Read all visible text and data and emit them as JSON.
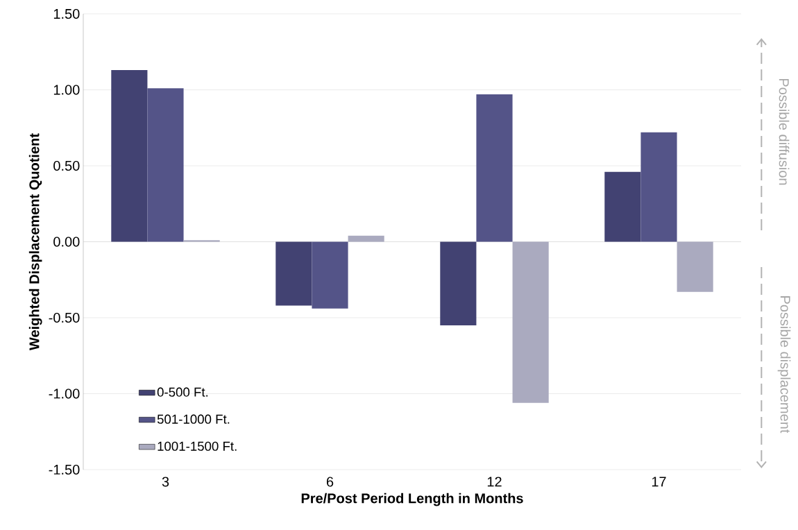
{
  "chart_data": {
    "type": "bar",
    "xlabel": "Pre/Post Period Length in Months",
    "ylabel": "Weighted Displacement Quotient",
    "categories": [
      "3",
      "6",
      "12",
      "17"
    ],
    "series": [
      {
        "name": "0-500 Ft.",
        "color": "#424272",
        "values": [
          1.13,
          -0.42,
          -0.55,
          0.46
        ]
      },
      {
        "name": "501-1000 Ft.",
        "color": "#545488",
        "values": [
          1.01,
          -0.44,
          0.97,
          0.72
        ]
      },
      {
        "name": "1001-1500 Ft.",
        "color": "#aaaabf",
        "values": [
          0.01,
          0.04,
          -1.06,
          -0.33
        ]
      }
    ],
    "ylim": [
      -1.5,
      1.5
    ],
    "yticks": [
      {
        "value": -1.5,
        "label": "-1.50"
      },
      {
        "value": -1.0,
        "label": "-1.00"
      },
      {
        "value": -0.5,
        "label": "-0.50"
      },
      {
        "value": 0.0,
        "label": "0.00"
      },
      {
        "value": 0.5,
        "label": "0.50"
      },
      {
        "value": 1.0,
        "label": "1.00"
      },
      {
        "value": 1.5,
        "label": "1.50"
      }
    ],
    "grid": "y",
    "legend": "bottom left",
    "annotations": [
      "Possible diffusion",
      "Possible displacement"
    ]
  }
}
